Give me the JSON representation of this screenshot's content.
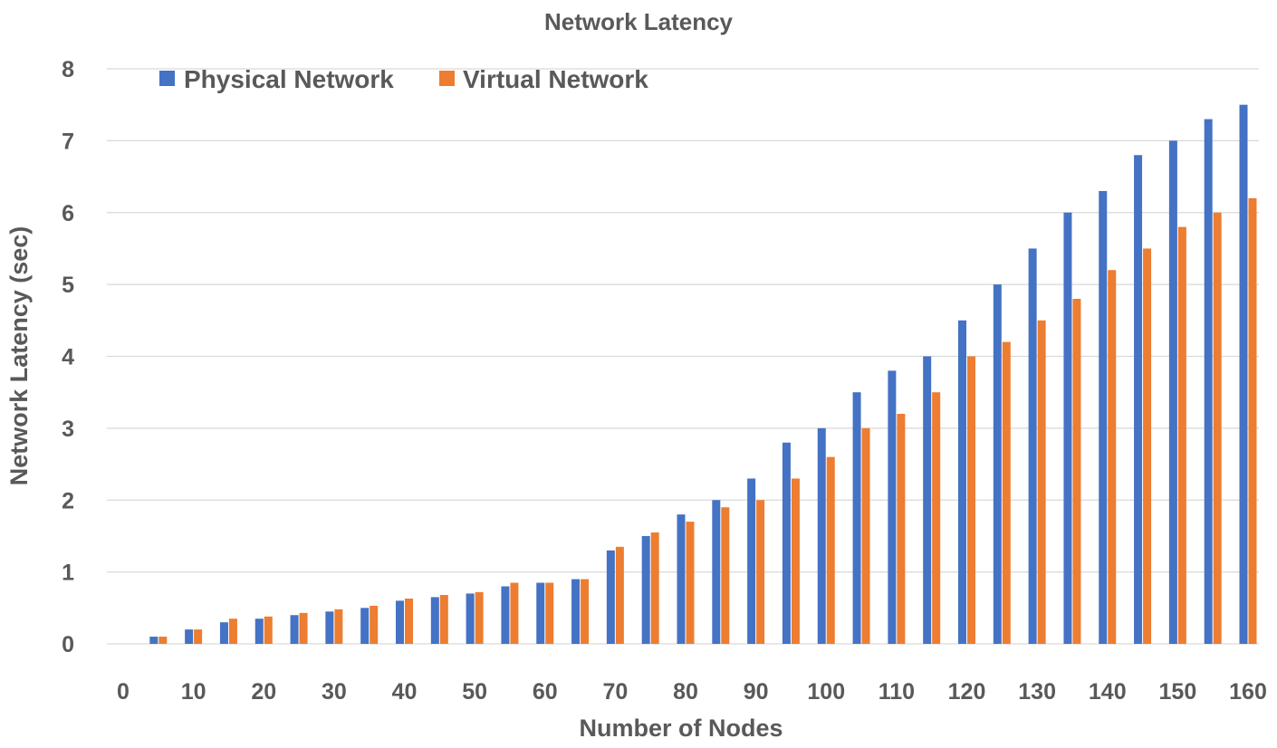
{
  "chart_data": {
    "type": "bar",
    "title": "Network Latency",
    "xlabel": "Number of Nodes",
    "ylabel": "Network Latency (sec)",
    "ylim": [
      0,
      8
    ],
    "yticks": [
      "0",
      "1",
      "2",
      "3",
      "4",
      "5",
      "6",
      "7",
      "8"
    ],
    "xticks": [
      "0",
      "10",
      "20",
      "30",
      "40",
      "50",
      "60",
      "70",
      "80",
      "90",
      "100",
      "110",
      "120",
      "130",
      "140",
      "150",
      "160"
    ],
    "categories": [
      5,
      10,
      15,
      20,
      25,
      30,
      35,
      40,
      45,
      50,
      55,
      60,
      65,
      70,
      75,
      80,
      85,
      90,
      95,
      100,
      105,
      110,
      115,
      120,
      125,
      130,
      135,
      140,
      145,
      150,
      155,
      160
    ],
    "grid": true,
    "legend_position": "top-left",
    "series": [
      {
        "name": "Physical Network",
        "color": "#4472c4",
        "values": [
          0.1,
          0.2,
          0.3,
          0.35,
          0.4,
          0.45,
          0.5,
          0.6,
          0.65,
          0.7,
          0.8,
          0.85,
          0.9,
          1.3,
          1.5,
          1.8,
          2.0,
          2.3,
          2.8,
          3.0,
          3.5,
          3.8,
          4.0,
          4.5,
          5.0,
          5.5,
          6.0,
          6.3,
          6.8,
          7.0,
          7.3,
          7.5
        ]
      },
      {
        "name": "Virtual Network",
        "color": "#ed7d31",
        "values": [
          0.1,
          0.2,
          0.35,
          0.38,
          0.43,
          0.48,
          0.53,
          0.63,
          0.68,
          0.72,
          0.85,
          0.85,
          0.9,
          1.35,
          1.55,
          1.7,
          1.9,
          2.0,
          2.3,
          2.6,
          3.0,
          3.2,
          3.5,
          4.0,
          4.2,
          4.5,
          4.8,
          5.2,
          5.5,
          5.8,
          6.0,
          6.2
        ]
      }
    ]
  }
}
